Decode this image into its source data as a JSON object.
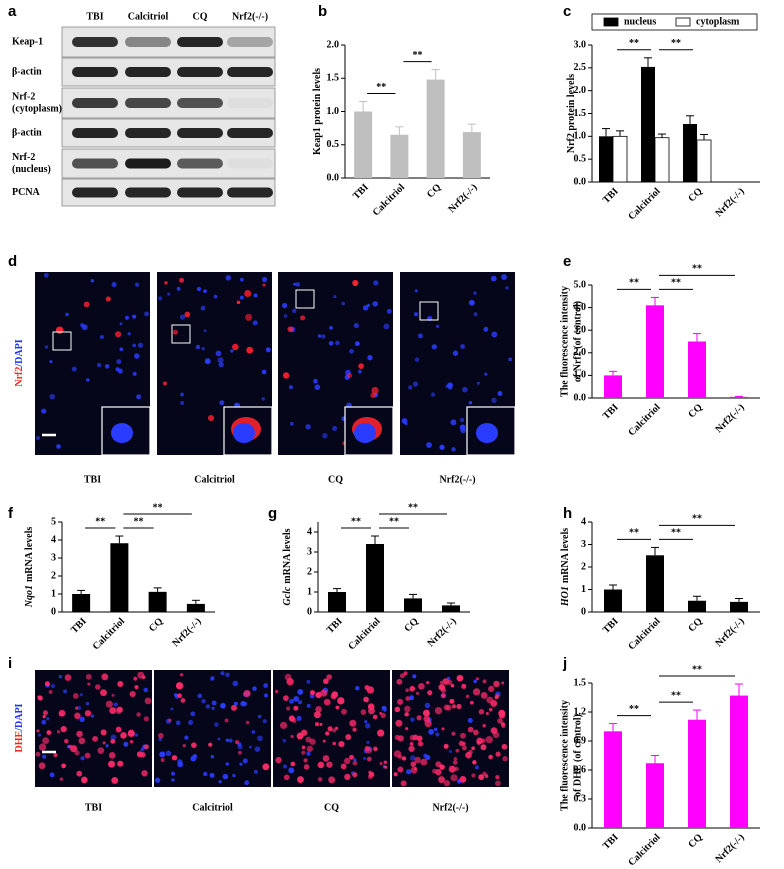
{
  "panel_labels": [
    "a",
    "b",
    "c",
    "d",
    "e",
    "f",
    "g",
    "h",
    "i",
    "j"
  ],
  "blot": {
    "lanes": [
      "TBI",
      "Calcitriol",
      "CQ",
      "Nrf2(-/-)"
    ],
    "rows": [
      [
        "Keap-1"
      ],
      [
        "β-actin"
      ],
      [
        "Nrf-2",
        "(cytoplasm)"
      ],
      [
        "β-actin"
      ],
      [
        "Nrf-2",
        "(nucleus)"
      ],
      [
        "PCNA"
      ]
    ]
  },
  "nrf2_staining": {
    "stain": [
      "Nrf2",
      "/DAPI"
    ],
    "groups": [
      "TBI",
      "Calcitriol",
      "CQ",
      "Nrf2(-/-)"
    ]
  },
  "dhe_staining": {
    "stain": [
      "DHE",
      "/DAPI"
    ],
    "groups": [
      "TBI",
      "Calcitriol",
      "CQ",
      "Nrf2(-/-)"
    ]
  },
  "chart_data": [
    {
      "type": "bar",
      "y_label": [
        "Keap1 protein levels"
      ],
      "categories": [
        "TBI",
        "Calcitriol",
        "CQ",
        "Nrf2(-/-)"
      ],
      "series": [
        {
          "color": "#bfbfbf",
          "values": [
            1.0,
            0.65,
            1.48,
            0.69
          ],
          "errors": [
            0.15,
            0.12,
            0.15,
            0.12
          ]
        }
      ],
      "ylim": [
        0,
        2.0
      ],
      "yticks": [
        {
          "value": 0,
          "label": "0.0"
        },
        {
          "value": 0.5,
          "label": "0.5"
        },
        {
          "value": 1,
          "label": "1.0"
        },
        {
          "value": 1.5,
          "label": "1.5"
        },
        {
          "value": 2,
          "label": "2.0"
        }
      ],
      "annotations": [
        {
          "text": "**",
          "between": [
            "TBI",
            "Calcitriol"
          ]
        },
        {
          "text": "**",
          "between": [
            "Calcitriol",
            "CQ"
          ]
        }
      ]
    },
    {
      "type": "bar",
      "y_label": [
        "Nrf2 protein levels"
      ],
      "categories": [
        "TBI",
        "Calcitriol",
        "CQ",
        "Nrf2(-/-)"
      ],
      "series": [
        {
          "name": "nucleus",
          "color": "#000000",
          "values": [
            1.0,
            2.52,
            1.27,
            0
          ],
          "errors": [
            0.17,
            0.2,
            0.18,
            0
          ]
        },
        {
          "name": "cytoplasm",
          "color": "#ffffff",
          "values": [
            1.0,
            0.97,
            0.92,
            0
          ],
          "errors": [
            0.12,
            0.08,
            0.12,
            0
          ]
        }
      ],
      "legend": "top",
      "ylim": [
        0,
        3.0
      ],
      "yticks": [
        {
          "value": 0,
          "label": "0.0"
        },
        {
          "value": 0.5,
          "label": "0.5"
        },
        {
          "value": 1,
          "label": "1.0"
        },
        {
          "value": 1.5,
          "label": "1.5"
        },
        {
          "value": 2,
          "label": "2.0"
        },
        {
          "value": 2.5,
          "label": "2.5"
        },
        {
          "value": 3,
          "label": "3.0"
        }
      ],
      "annotations": [
        {
          "text": "**",
          "between": [
            "TBI",
            "Calcitriol"
          ]
        },
        {
          "text": "**",
          "between": [
            "Calcitriol",
            "CQ"
          ]
        }
      ]
    },
    {
      "type": "bar",
      "y_label": [
        "The fluorescence intensity",
        "of Nrf2 (of control)"
      ],
      "categories": [
        "TBI",
        "Calcitriol",
        "CQ",
        "Nrf2(-/-)"
      ],
      "series": [
        {
          "color": "#ff00ff",
          "values": [
            1.0,
            4.1,
            2.5,
            0.05
          ],
          "errors": [
            0.18,
            0.35,
            0.35,
            0.02
          ]
        }
      ],
      "ylim": [
        0,
        5.0
      ],
      "yticks": [
        {
          "value": 0,
          "label": "0.0"
        },
        {
          "value": 1,
          "label": "1.0"
        },
        {
          "value": 2,
          "label": "2.0"
        },
        {
          "value": 3,
          "label": "3.0"
        },
        {
          "value": 4,
          "label": "4.0"
        },
        {
          "value": 5,
          "label": "5.0"
        }
      ],
      "annotations": [
        {
          "text": "**",
          "between": [
            "TBI",
            "Calcitriol"
          ]
        },
        {
          "text": "**",
          "between": [
            "Calcitriol",
            "CQ"
          ]
        },
        {
          "text": "**",
          "between": [
            "Calcitriol",
            "Nrf2(-/-)"
          ]
        }
      ]
    },
    {
      "type": "bar",
      "y_label_italic": "Nqo1",
      "y_label": [
        "mRNA levels"
      ],
      "categories": [
        "TBI",
        "Calcitriol",
        "CQ",
        "Nrf2(-/-)"
      ],
      "series": [
        {
          "color": "#000000",
          "values": [
            1.0,
            3.82,
            1.12,
            0.45
          ],
          "errors": [
            0.2,
            0.4,
            0.22,
            0.2
          ]
        }
      ],
      "ylim": [
        0,
        5
      ],
      "yticks": [
        0,
        1,
        2,
        3,
        4,
        5
      ],
      "annotations": [
        {
          "text": "**",
          "between": [
            "TBI",
            "Calcitriol"
          ]
        },
        {
          "text": "**",
          "between": [
            "Calcitriol",
            "CQ"
          ]
        },
        {
          "text": "**",
          "between": [
            "Calcitriol",
            "Nrf2(-/-)"
          ]
        }
      ]
    },
    {
      "type": "bar",
      "y_label_italic": "Gclc",
      "y_label": [
        "mRNA levels"
      ],
      "categories": [
        "TBI",
        "Calcitriol",
        "CQ",
        "Nrf2(-/-)"
      ],
      "series": [
        {
          "color": "#000000",
          "values": [
            1.0,
            3.4,
            0.68,
            0.33
          ],
          "errors": [
            0.17,
            0.4,
            0.2,
            0.12
          ]
        }
      ],
      "ylim": [
        0,
        4.5
      ],
      "yticks": [
        0,
        1,
        2,
        3,
        4
      ],
      "annotations": [
        {
          "text": "**",
          "between": [
            "TBI",
            "Calcitriol"
          ]
        },
        {
          "text": "**",
          "between": [
            "Calcitriol",
            "CQ"
          ]
        },
        {
          "text": "**",
          "between": [
            "Calcitriol",
            "Nrf2(-/-)"
          ]
        }
      ]
    },
    {
      "type": "bar",
      "y_label_italic": "HO1",
      "y_label": [
        "mRNA levels"
      ],
      "categories": [
        "TBI",
        "Calcitriol",
        "CQ",
        "Nrf2(-/-)"
      ],
      "series": [
        {
          "color": "#000000",
          "values": [
            1.0,
            2.52,
            0.5,
            0.45
          ],
          "errors": [
            0.2,
            0.35,
            0.2,
            0.15
          ]
        }
      ],
      "ylim": [
        0,
        4
      ],
      "yticks": [
        0,
        1,
        2,
        3,
        4
      ],
      "annotations": [
        {
          "text": "**",
          "between": [
            "TBI",
            "Calcitriol"
          ]
        },
        {
          "text": "**",
          "between": [
            "Calcitriol",
            "CQ"
          ]
        },
        {
          "text": "**",
          "between": [
            "Calcitriol",
            "Nrf2(-/-)"
          ]
        }
      ]
    },
    {
      "type": "bar",
      "y_label": [
        "The fluorescence intensity",
        "of DHE (of control)"
      ],
      "categories": [
        "TBI",
        "Calcitriol",
        "CQ",
        "Nrf2(-/-)"
      ],
      "series": [
        {
          "color": "#ff00ff",
          "values": [
            1.0,
            0.67,
            1.12,
            1.37
          ],
          "errors": [
            0.08,
            0.08,
            0.1,
            0.12
          ]
        }
      ],
      "ylim": [
        0,
        1.5
      ],
      "yticks": [
        {
          "value": 0,
          "label": "0.0"
        },
        {
          "value": 0.3,
          "label": "0.3"
        },
        {
          "value": 0.6,
          "label": "0.6"
        },
        {
          "value": 0.9,
          "label": "0.9"
        },
        {
          "value": 1.2,
          "label": "1.2"
        },
        {
          "value": 1.5,
          "label": "1.5"
        }
      ],
      "annotations": [
        {
          "text": "**",
          "between": [
            "TBI",
            "Calcitriol"
          ]
        },
        {
          "text": "**",
          "between": [
            "Calcitriol",
            "CQ"
          ]
        },
        {
          "text": "**",
          "between": [
            "Calcitriol",
            "Nrf2(-/-)"
          ]
        }
      ]
    }
  ]
}
